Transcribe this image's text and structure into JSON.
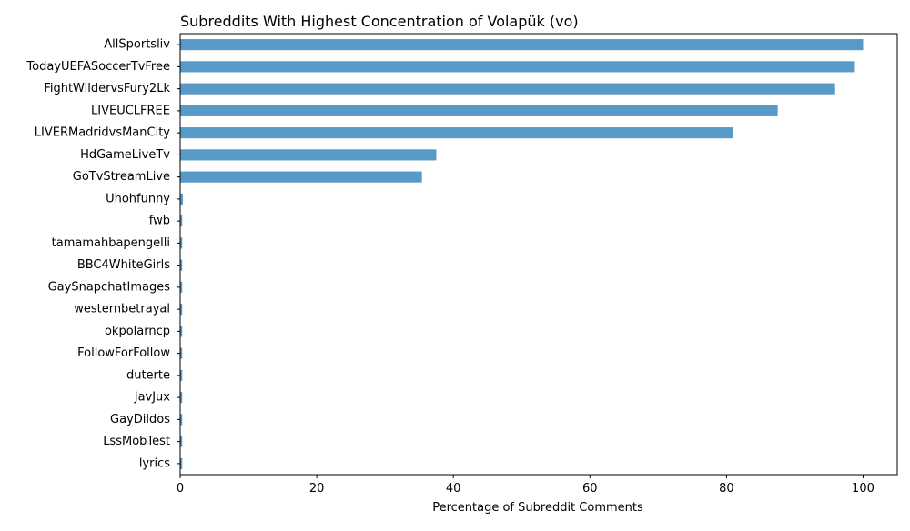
{
  "chart_data": {
    "type": "bar",
    "orientation": "horizontal",
    "title": "Subreddits With Highest Concentration of Volapük (vo)",
    "xlabel": "Percentage of Subreddit Comments",
    "ylabel": "",
    "xlim": [
      0,
      105
    ],
    "xticks": [
      0,
      20,
      40,
      60,
      80,
      100
    ],
    "grid": false,
    "bar_color": "#5799c7",
    "categories": [
      "AllSportsliv",
      "TodayUEFASoccerTvFree",
      "FightWildervsFury2Lk",
      "LIVEUCLFREE",
      "LIVERMadridvsManCity",
      "HdGameLiveTv",
      "GoTvStreamLive",
      "Uhohfunny",
      "fwb",
      "tamamahbapengelli",
      "BBC4WhiteGirls",
      "GaySnapchatImages",
      "westernbetrayal",
      "okpolarncp",
      "FollowForFollow",
      "duterte",
      "JavJux",
      "GayDildos",
      "LssMobTest",
      "lyrics"
    ],
    "values": [
      100.0,
      98.8,
      95.9,
      87.5,
      81.0,
      37.5,
      35.4,
      0.4,
      0.3,
      0.3,
      0.3,
      0.3,
      0.3,
      0.3,
      0.3,
      0.3,
      0.3,
      0.3,
      0.3,
      0.3
    ]
  }
}
